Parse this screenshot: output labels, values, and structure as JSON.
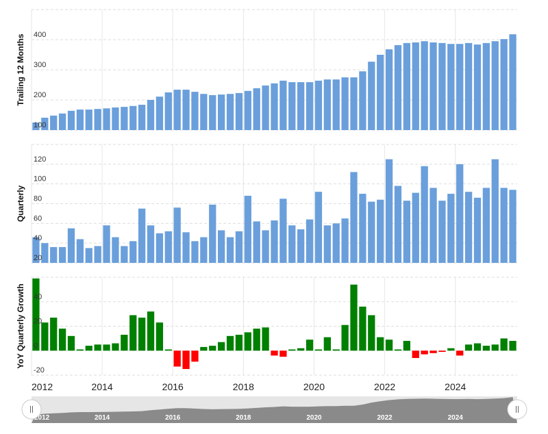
{
  "chart_data": [
    {
      "type": "bar",
      "ylabel": "Trailing 12 Months",
      "color": "#6a9fdb",
      "grid": true,
      "xlim": [
        2012,
        2025.75
      ],
      "xticks": [
        2012,
        2014,
        2016,
        2018,
        2020,
        2022,
        2024
      ],
      "ylim": [
        100,
        500
      ],
      "yticks": [
        100,
        200,
        300,
        400
      ],
      "x": [
        2012,
        2012.25,
        2012.5,
        2012.75,
        2013,
        2013.25,
        2013.5,
        2013.75,
        2014,
        2014.25,
        2014.5,
        2014.75,
        2015,
        2015.25,
        2015.5,
        2015.75,
        2016,
        2016.25,
        2016.5,
        2016.75,
        2017,
        2017.25,
        2017.5,
        2017.75,
        2018,
        2018.25,
        2018.5,
        2018.75,
        2019,
        2019.25,
        2019.5,
        2019.75,
        2020,
        2020.25,
        2020.5,
        2020.75,
        2021,
        2021.25,
        2021.5,
        2021.75,
        2022,
        2022.25,
        2022.5,
        2022.75,
        2023,
        2023.25,
        2023.5,
        2023.75,
        2024,
        2024.25,
        2024.5,
        2024.75,
        2025,
        2025.25,
        2025.5
      ],
      "values": [
        125,
        141,
        148,
        155,
        164,
        168,
        168,
        170,
        172,
        175,
        177,
        180,
        184,
        200,
        211,
        225,
        234,
        234,
        227,
        220,
        216,
        218,
        220,
        223,
        230,
        239,
        248,
        255,
        264,
        259,
        259,
        259,
        264,
        268,
        268,
        275,
        275,
        295,
        327,
        350,
        368,
        382,
        389,
        391,
        395,
        391,
        389,
        386,
        386,
        389,
        384,
        389,
        395,
        402,
        418
      ]
    },
    {
      "type": "bar",
      "ylabel": "Quarterly",
      "color": "#6a9fdb",
      "grid": true,
      "xlim": [
        2012,
        2025.75
      ],
      "xticks": [
        2012,
        2014,
        2016,
        2018,
        2020,
        2022,
        2024
      ],
      "ylim": [
        20,
        140
      ],
      "yticks": [
        20,
        40,
        60,
        80,
        100,
        120
      ],
      "x": [
        2012,
        2012.25,
        2012.5,
        2012.75,
        2013,
        2013.25,
        2013.5,
        2013.75,
        2014,
        2014.25,
        2014.5,
        2014.75,
        2015,
        2015.25,
        2015.5,
        2015.75,
        2016,
        2016.25,
        2016.5,
        2016.75,
        2017,
        2017.25,
        2017.5,
        2017.75,
        2018,
        2018.25,
        2018.5,
        2018.75,
        2019,
        2019.25,
        2019.5,
        2019.75,
        2020,
        2020.25,
        2020.5,
        2020.75,
        2021,
        2021.25,
        2021.5,
        2021.75,
        2022,
        2022.25,
        2022.5,
        2022.75,
        2023,
        2023.25,
        2023.5,
        2023.75,
        2024,
        2024.25,
        2024.5,
        2024.75,
        2025,
        2025.25,
        2025.5
      ],
      "values": [
        46,
        40,
        36,
        36,
        55,
        44,
        35,
        37,
        58,
        46,
        37,
        42,
        75,
        58,
        50,
        52,
        76,
        51,
        42,
        46,
        79,
        53,
        46,
        52,
        88,
        62,
        53,
        63,
        85,
        58,
        54,
        64,
        92,
        58,
        60,
        65,
        112,
        90,
        82,
        84,
        125,
        98,
        83,
        91,
        118,
        96,
        83,
        90,
        120,
        92,
        86,
        96,
        125,
        96,
        94
      ]
    },
    {
      "type": "bar",
      "ylabel": "YoY Quarterly Growth",
      "color": "#008000",
      "negative_color": "#ff0000",
      "grid": true,
      "xlim": [
        2012,
        2025.75
      ],
      "xticks": [
        2012,
        2014,
        2016,
        2018,
        2020,
        2022,
        2024
      ],
      "ylim": [
        -20,
        60
      ],
      "yticks": [
        -20,
        0,
        20,
        40
      ],
      "x": [
        2012,
        2012.25,
        2012.5,
        2012.75,
        2013,
        2013.25,
        2013.5,
        2013.75,
        2014,
        2014.25,
        2014.5,
        2014.75,
        2015,
        2015.25,
        2015.5,
        2015.75,
        2016,
        2016.25,
        2016.5,
        2016.75,
        2017,
        2017.25,
        2017.5,
        2017.75,
        2018,
        2018.25,
        2018.5,
        2018.75,
        2019,
        2019.25,
        2019.5,
        2019.75,
        2020,
        2020.25,
        2020.5,
        2020.75,
        2021,
        2021.25,
        2021.5,
        2021.75,
        2022,
        2022.25,
        2022.5,
        2022.75,
        2023,
        2023.25,
        2023.5,
        2023.75,
        2024,
        2024.25,
        2024.5,
        2024.75,
        2025,
        2025.25,
        2025.5
      ],
      "values": [
        59,
        23,
        27,
        18,
        12,
        1,
        4,
        5,
        5,
        6,
        13,
        29,
        27,
        32,
        23,
        1,
        -13,
        -15,
        -9,
        3,
        4,
        7,
        12,
        13,
        15,
        18,
        19,
        -4,
        -5,
        1,
        2,
        9,
        1,
        11,
        1,
        21,
        54,
        36,
        29,
        11,
        9,
        1,
        8,
        -6,
        -3,
        -2,
        -1,
        2,
        -4,
        5,
        6,
        4,
        5,
        10,
        8
      ]
    }
  ]
}
